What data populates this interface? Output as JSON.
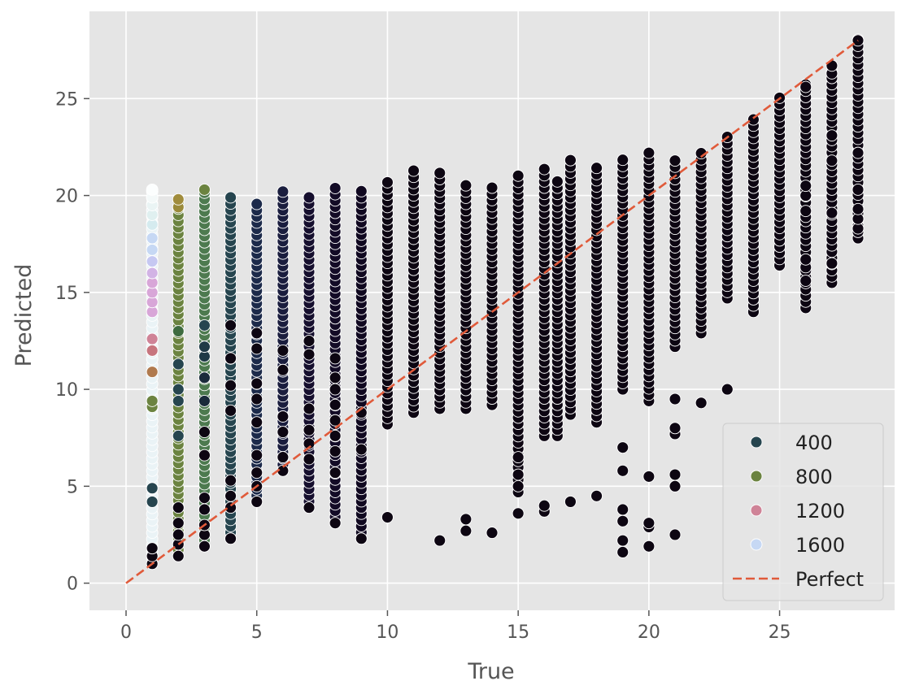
{
  "chart_data": {
    "type": "scatter",
    "title": "",
    "xlabel": "True",
    "ylabel": "Predicted",
    "xlim": [
      -1.4,
      29.4
    ],
    "ylim": [
      -1.4,
      29.5
    ],
    "xticks": [
      0,
      5,
      10,
      15,
      20,
      25
    ],
    "yticks": [
      0,
      5,
      10,
      15,
      20,
      25
    ],
    "grid": true,
    "legend_position": "bottom-right",
    "hue_legend": [
      {
        "label": "400",
        "color": "#26454f"
      },
      {
        "label": "800",
        "color": "#6b8340"
      },
      {
        "label": "1200",
        "color": "#cf8397"
      },
      {
        "label": "1600",
        "color": "#c6d8f4"
      }
    ],
    "reference_line": {
      "label": "Perfect",
      "color": "#e05a3a",
      "style": "dashed",
      "from": [
        0,
        0
      ],
      "to": [
        28,
        28
      ]
    },
    "columns": [
      {
        "x": 1,
        "y_min": 1.0,
        "y_max": 20.3,
        "color": "#eaf3f6",
        "extra_points": [
          {
            "y": 1.0,
            "color": "#0d0612"
          },
          {
            "y": 1.4,
            "color": "#0d0612"
          },
          {
            "y": 1.8,
            "color": "#0d0612"
          },
          {
            "y": 4.2,
            "color": "#26454f"
          },
          {
            "y": 4.9,
            "color": "#26454f"
          },
          {
            "y": 9.1,
            "color": "#6b8340"
          },
          {
            "y": 9.4,
            "color": "#6b8340"
          },
          {
            "y": 10.9,
            "color": "#b07a4e"
          },
          {
            "y": 12.0,
            "color": "#c7757e"
          },
          {
            "y": 12.6,
            "color": "#cf8397"
          },
          {
            "y": 14.0,
            "color": "#d8a6d8"
          },
          {
            "y": 14.5,
            "color": "#d8a6d8"
          },
          {
            "y": 15.0,
            "color": "#d8a6d8"
          },
          {
            "y": 15.5,
            "color": "#d8a6d8"
          },
          {
            "y": 16.0,
            "color": "#d2b3e5"
          },
          {
            "y": 16.6,
            "color": "#c6c8f2"
          },
          {
            "y": 17.2,
            "color": "#c6d8f4"
          },
          {
            "y": 17.8,
            "color": "#c6d8f4"
          },
          {
            "y": 18.5,
            "color": "#d5ebef"
          },
          {
            "y": 19.0,
            "color": "#e0f0f0"
          },
          {
            "y": 19.5,
            "color": "#eaf4f4"
          },
          {
            "y": 19.9,
            "color": "#f4f9f9"
          },
          {
            "y": 20.3,
            "color": "#fcfefe"
          }
        ]
      },
      {
        "x": 2,
        "y_min": 1.4,
        "y_max": 19.8,
        "color": "#6b8340",
        "extra_points": [
          {
            "y": 1.4,
            "color": "#0d0612"
          },
          {
            "y": 2.0,
            "color": "#0d0612"
          },
          {
            "y": 2.5,
            "color": "#0d0612"
          },
          {
            "y": 3.1,
            "color": "#0d0612"
          },
          {
            "y": 3.9,
            "color": "#0d0612"
          },
          {
            "y": 7.6,
            "color": "#26454f"
          },
          {
            "y": 9.4,
            "color": "#26454f"
          },
          {
            "y": 10.0,
            "color": "#26454f"
          },
          {
            "y": 11.3,
            "color": "#26454f"
          },
          {
            "y": 13.0,
            "color": "#3e6b3f"
          },
          {
            "y": 19.4,
            "color": "#9a8a3a"
          },
          {
            "y": 19.8,
            "color": "#a08c3c"
          }
        ]
      },
      {
        "x": 3,
        "y_min": 1.9,
        "y_max": 20.3,
        "color": "#4d7a4f",
        "extra_points": [
          {
            "y": 1.9,
            "color": "#0d0612"
          },
          {
            "y": 2.5,
            "color": "#0d0612"
          },
          {
            "y": 3.0,
            "color": "#0d0612"
          },
          {
            "y": 3.8,
            "color": "#0d0612"
          },
          {
            "y": 4.4,
            "color": "#0d0612"
          },
          {
            "y": 6.6,
            "color": "#0d0612"
          },
          {
            "y": 7.8,
            "color": "#0d0612"
          },
          {
            "y": 9.4,
            "color": "#1a2a3a"
          },
          {
            "y": 10.6,
            "color": "#1a2a3a"
          },
          {
            "y": 11.7,
            "color": "#1f3a46"
          },
          {
            "y": 12.2,
            "color": "#1f3a46"
          },
          {
            "y": 13.3,
            "color": "#26454f"
          },
          {
            "y": 20.3,
            "color": "#6b8340"
          }
        ]
      },
      {
        "x": 4,
        "y_min": 2.3,
        "y_max": 20.0,
        "color": "#26454f",
        "extra_points": [
          {
            "y": 2.3,
            "color": "#0d0612"
          },
          {
            "y": 3.9,
            "color": "#0d0612"
          },
          {
            "y": 4.5,
            "color": "#0d0612"
          },
          {
            "y": 5.3,
            "color": "#0d0612"
          },
          {
            "y": 8.9,
            "color": "#0d0612"
          },
          {
            "y": 10.2,
            "color": "#0d0612"
          },
          {
            "y": 11.6,
            "color": "#0d0612"
          },
          {
            "y": 13.3,
            "color": "#0d0612"
          }
        ]
      },
      {
        "x": 5,
        "y_min": 4.2,
        "y_max": 19.8,
        "color": "#1c2a4a",
        "extra_points": [
          {
            "y": 4.2,
            "color": "#0d0612"
          },
          {
            "y": 5.0,
            "color": "#0d0612"
          },
          {
            "y": 5.7,
            "color": "#0d0612"
          },
          {
            "y": 6.6,
            "color": "#0d0612"
          },
          {
            "y": 8.3,
            "color": "#0d0612"
          },
          {
            "y": 9.5,
            "color": "#0d0612"
          },
          {
            "y": 10.3,
            "color": "#0d0612"
          },
          {
            "y": 12.1,
            "color": "#0d0612"
          },
          {
            "y": 12.9,
            "color": "#0d0612"
          }
        ]
      },
      {
        "x": 6,
        "y_min": 5.8,
        "y_max": 20.3,
        "color": "#1a1d3e",
        "extra_points": [
          {
            "y": 5.8,
            "color": "#0d0612"
          },
          {
            "y": 6.5,
            "color": "#0d0612"
          },
          {
            "y": 7.8,
            "color": "#0d0612"
          },
          {
            "y": 8.6,
            "color": "#0d0612"
          },
          {
            "y": 11.0,
            "color": "#0d0612"
          },
          {
            "y": 12.0,
            "color": "#0d0612"
          }
        ]
      },
      {
        "x": 7,
        "y_min": 3.9,
        "y_max": 20.2,
        "color": "#160f2e",
        "extra_points": [
          {
            "y": 3.9,
            "color": "#0d0612"
          },
          {
            "y": 6.4,
            "color": "#0d0612"
          },
          {
            "y": 7.2,
            "color": "#0d0612"
          },
          {
            "y": 7.9,
            "color": "#0d0612"
          },
          {
            "y": 9.0,
            "color": "#0d0612"
          },
          {
            "y": 11.8,
            "color": "#0d0612"
          },
          {
            "y": 12.5,
            "color": "#0d0612"
          }
        ]
      },
      {
        "x": 8,
        "y_min": 3.1,
        "y_max": 20.6,
        "color": "#130b26",
        "extra_points": [
          {
            "y": 3.1,
            "color": "#0d0612"
          },
          {
            "y": 5.7,
            "color": "#0d0612"
          },
          {
            "y": 6.8,
            "color": "#0d0612"
          },
          {
            "y": 7.6,
            "color": "#0d0612"
          },
          {
            "y": 8.4,
            "color": "#0d0612"
          },
          {
            "y": 9.2,
            "color": "#0d0612"
          },
          {
            "y": 10.0,
            "color": "#0d0612"
          },
          {
            "y": 10.6,
            "color": "#0d0612"
          },
          {
            "y": 11.6,
            "color": "#0d0612"
          }
        ]
      },
      {
        "x": 9,
        "y_min": 2.3,
        "y_max": 20.3,
        "color": "#100820",
        "extra_points": [
          {
            "y": 2.3,
            "color": "#0d0612"
          },
          {
            "y": 6.9,
            "color": "#0d0612"
          },
          {
            "y": 8.8,
            "color": "#0d0612"
          }
        ]
      },
      {
        "x": 10,
        "y_min": 8.2,
        "y_max": 20.7,
        "color": "#0d0612",
        "extra_points": [
          {
            "y": 3.4,
            "color": "#0d0612"
          }
        ]
      },
      {
        "x": 11,
        "y_min": 8.8,
        "y_max": 21.3,
        "color": "#0d0612",
        "extra_points": []
      },
      {
        "x": 12,
        "y_min": 9.0,
        "y_max": 21.3,
        "color": "#0d0612",
        "extra_points": [
          {
            "y": 2.2,
            "color": "#0d0612"
          }
        ]
      },
      {
        "x": 13,
        "y_min": 9.0,
        "y_max": 20.6,
        "color": "#0d0612",
        "extra_points": [
          {
            "y": 2.7,
            "color": "#0d0612"
          },
          {
            "y": 3.3,
            "color": "#0d0612"
          }
        ]
      },
      {
        "x": 14,
        "y_min": 9.2,
        "y_max": 20.6,
        "color": "#0d0612",
        "extra_points": [
          {
            "y": 2.6,
            "color": "#0d0612"
          }
        ]
      },
      {
        "x": 15,
        "y_min": 4.7,
        "y_max": 21.2,
        "color": "#0d0612",
        "extra_points": [
          {
            "y": 3.6,
            "color": "#0d0612"
          },
          {
            "y": 5.0,
            "color": "#0d0612"
          },
          {
            "y": 5.6,
            "color": "#0d0612"
          },
          {
            "y": 6.5,
            "color": "#0d0612"
          }
        ]
      },
      {
        "x": 16,
        "y_min": 7.6,
        "y_max": 21.4,
        "color": "#0d0612",
        "extra_points": [
          {
            "y": 3.7,
            "color": "#0d0612"
          },
          {
            "y": 4.0,
            "color": "#0d0612"
          }
        ]
      },
      {
        "x": 16.5,
        "y_min": 7.6,
        "y_max": 21.0,
        "color": "#0d0612",
        "extra_points": []
      },
      {
        "x": 17,
        "y_min": 8.7,
        "y_max": 22.0,
        "color": "#0d0612",
        "extra_points": [
          {
            "y": 4.2,
            "color": "#0d0612"
          }
        ]
      },
      {
        "x": 18,
        "y_min": 8.3,
        "y_max": 21.7,
        "color": "#0d0612",
        "extra_points": [
          {
            "y": 4.5,
            "color": "#0d0612"
          }
        ]
      },
      {
        "x": 19,
        "y_min": 10.0,
        "y_max": 22.1,
        "color": "#0d0612",
        "extra_points": [
          {
            "y": 1.6,
            "color": "#0d0612"
          },
          {
            "y": 2.2,
            "color": "#0d0612"
          },
          {
            "y": 3.2,
            "color": "#0d0612"
          },
          {
            "y": 3.8,
            "color": "#0d0612"
          },
          {
            "y": 5.8,
            "color": "#0d0612"
          },
          {
            "y": 7.0,
            "color": "#0d0612"
          }
        ]
      },
      {
        "x": 20,
        "y_min": 9.4,
        "y_max": 22.2,
        "color": "#0d0612",
        "extra_points": [
          {
            "y": 1.9,
            "color": "#0d0612"
          },
          {
            "y": 2.9,
            "color": "#0d0612"
          },
          {
            "y": 3.1,
            "color": "#0d0612"
          },
          {
            "y": 5.5,
            "color": "#0d0612"
          }
        ]
      },
      {
        "x": 21,
        "y_min": 12.2,
        "y_max": 22.1,
        "color": "#0d0612",
        "extra_points": [
          {
            "y": 2.5,
            "color": "#0d0612"
          },
          {
            "y": 5.0,
            "color": "#0d0612"
          },
          {
            "y": 5.6,
            "color": "#0d0612"
          },
          {
            "y": 7.7,
            "color": "#0d0612"
          },
          {
            "y": 8.0,
            "color": "#0d0612"
          },
          {
            "y": 9.5,
            "color": "#0d0612"
          }
        ]
      },
      {
        "x": 22,
        "y_min": 12.9,
        "y_max": 22.4,
        "color": "#0d0612",
        "extra_points": [
          {
            "y": 9.3,
            "color": "#0d0612"
          }
        ]
      },
      {
        "x": 23,
        "y_min": 14.7,
        "y_max": 23.2,
        "color": "#0d0612",
        "extra_points": [
          {
            "y": 10.0,
            "color": "#0d0612"
          }
        ]
      },
      {
        "x": 24,
        "y_min": 14.0,
        "y_max": 24.2,
        "color": "#0d0612",
        "extra_points": []
      },
      {
        "x": 25,
        "y_min": 16.4,
        "y_max": 25.1,
        "color": "#0d0612",
        "extra_points": []
      },
      {
        "x": 26,
        "y_min": 14.2,
        "y_max": 26.0,
        "color": "#0d0612",
        "extra_points": [
          {
            "y": 15.6,
            "color": "#0d0612"
          },
          {
            "y": 16.3,
            "color": "#0d0612"
          },
          {
            "y": 16.7,
            "color": "#0d0612"
          },
          {
            "y": 18.9,
            "color": "#0d0612"
          },
          {
            "y": 19.2,
            "color": "#0d0612"
          },
          {
            "y": 20.0,
            "color": "#0d0612"
          },
          {
            "y": 20.5,
            "color": "#0d0612"
          },
          {
            "y": 25.6,
            "color": "#0d0612"
          }
        ]
      },
      {
        "x": 27,
        "y_min": 15.5,
        "y_max": 27.0,
        "color": "#0d0612",
        "extra_points": [
          {
            "y": 16.5,
            "color": "#0d0612"
          },
          {
            "y": 19.1,
            "color": "#0d0612"
          },
          {
            "y": 21.8,
            "color": "#0d0612"
          },
          {
            "y": 23.1,
            "color": "#0d0612"
          },
          {
            "y": 26.3,
            "color": "#0d0612"
          },
          {
            "y": 26.7,
            "color": "#0d0612"
          }
        ]
      },
      {
        "x": 28,
        "y_min": 17.8,
        "y_max": 28.2,
        "color": "#0d0612",
        "extra_points": [
          {
            "y": 18.3,
            "color": "#0d0612"
          },
          {
            "y": 18.8,
            "color": "#0d0612"
          },
          {
            "y": 19.3,
            "color": "#0d0612"
          },
          {
            "y": 20.3,
            "color": "#0d0612"
          },
          {
            "y": 22.2,
            "color": "#0d0612"
          },
          {
            "y": 28.0,
            "color": "#0d0612"
          }
        ]
      }
    ]
  }
}
